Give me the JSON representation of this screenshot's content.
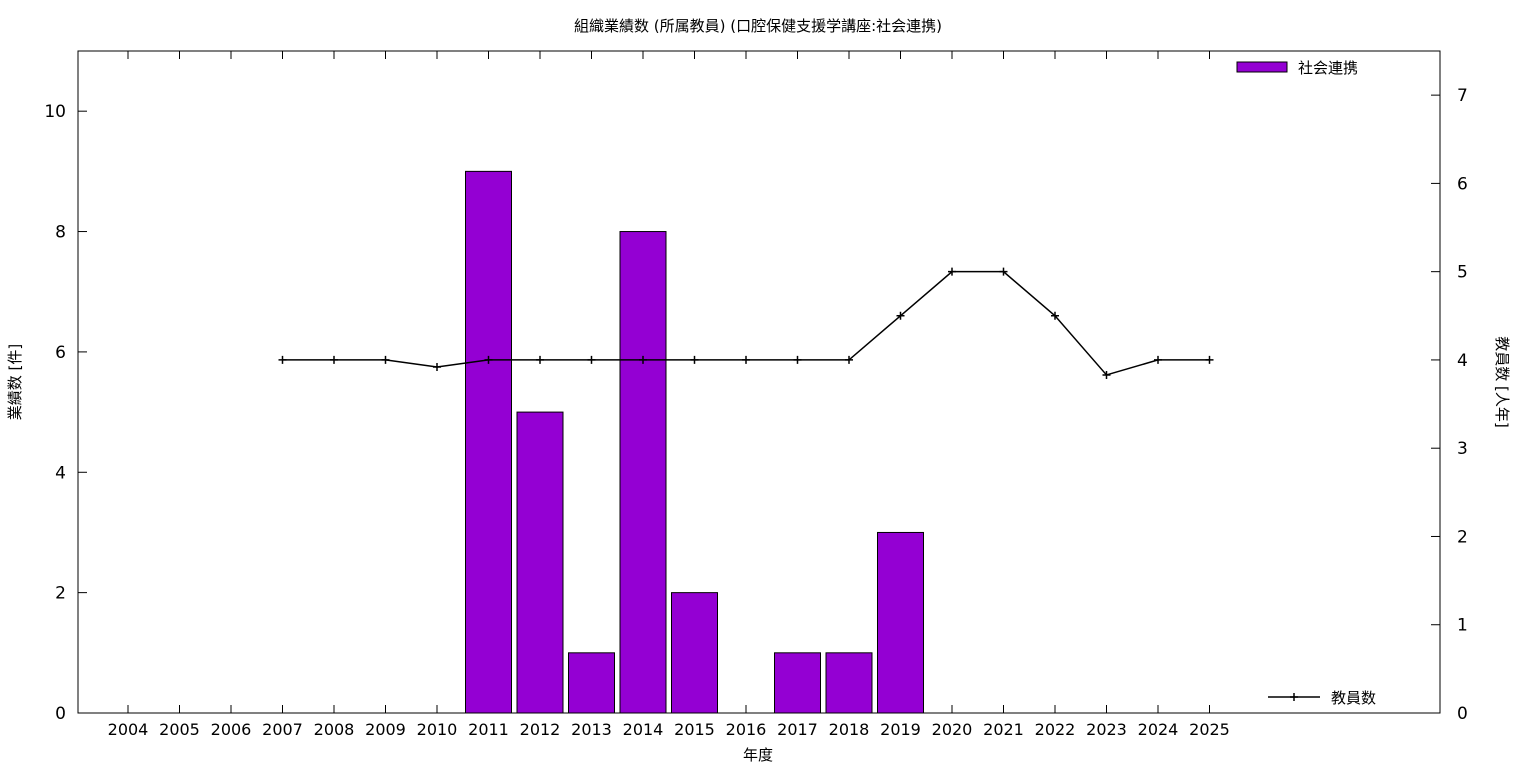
{
  "chart_data": {
    "type": "bar",
    "title": "組織業績数 (所属教員) (口腔保健支援学講座:社会連携)",
    "xlabel": "年度",
    "ylabel": "業績数 [件]",
    "y2label": "教員数 [人年]",
    "categories": [
      "2004",
      "2005",
      "2006",
      "2007",
      "2008",
      "2009",
      "2010",
      "2011",
      "2012",
      "2013",
      "2014",
      "2015",
      "2016",
      "2017",
      "2018",
      "2019",
      "2020",
      "2021",
      "2022",
      "2023",
      "2024",
      "2025"
    ],
    "ylim": [
      0,
      11
    ],
    "y2lim": [
      0,
      7.5
    ],
    "yticks": [
      0,
      2,
      4,
      6,
      8,
      10
    ],
    "y2ticks": [
      0,
      1,
      2,
      3,
      4,
      5,
      6,
      7
    ],
    "grid": false,
    "legend_position": "top-right (bars), bottom-right (line)",
    "series": [
      {
        "name": "社会連携",
        "type": "bar",
        "axis": "left",
        "color": "#9400d3",
        "values": [
          null,
          null,
          null,
          null,
          null,
          null,
          null,
          9,
          5,
          1,
          8,
          2,
          null,
          1,
          1,
          3,
          null,
          null,
          null,
          null,
          null,
          null
        ]
      },
      {
        "name": "教員数",
        "type": "line",
        "axis": "right",
        "color": "#000000",
        "values": [
          null,
          null,
          null,
          4,
          4,
          4,
          3.92,
          4,
          4,
          4,
          4,
          4,
          4,
          4,
          4,
          4.5,
          5,
          5,
          4.5,
          3.83,
          4,
          4
        ]
      }
    ]
  }
}
